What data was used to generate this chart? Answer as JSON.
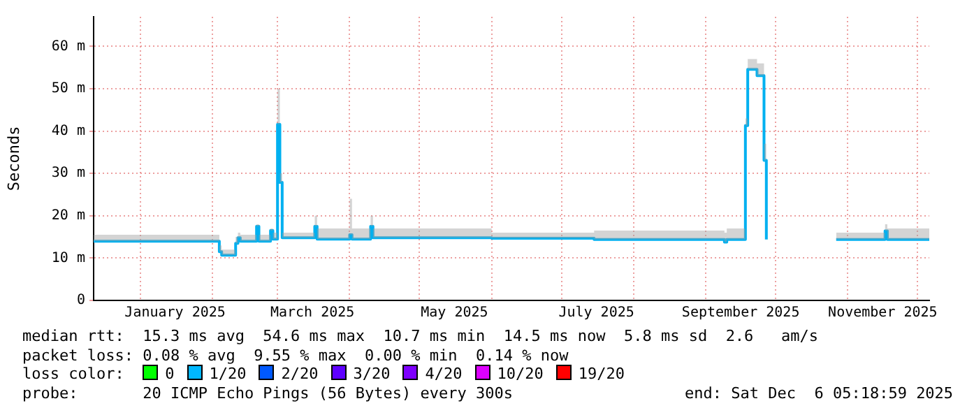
{
  "chart_data": {
    "type": "step",
    "ylabel": "Seconds",
    "legend_title": "loss color:",
    "legend": "bottom",
    "grid": true,
    "marker": "none",
    "x": [
      "2024-12-12",
      "2025-02-04",
      "2025-02-05",
      "2025-02-11",
      "2025-02-12",
      "2025-02-13",
      "2025-02-20",
      "2025-02-21",
      "2025-02-26",
      "2025-02-27",
      "2025-03-01",
      "2025-03-02",
      "2025-03-03",
      "2025-03-17",
      "2025-03-18",
      "2025-04-01",
      "2025-04-02",
      "2025-04-10",
      "2025-04-11",
      "2025-06-01",
      "2025-07-15",
      "2025-09-09",
      "2025-09-10",
      "2025-09-18",
      "2025-09-19",
      "2025-09-23",
      "2025-09-26",
      "2025-09-27",
      "2025-10-22",
      "2025-10-27",
      "2025-11-17",
      "2025-11-18",
      "2025-12-06"
    ],
    "series": [
      {
        "color": "#00b0f0",
        "values": [
          14.0,
          11.5,
          10.7,
          13.5,
          14.8,
          14.0,
          17.5,
          14.0,
          16.5,
          14.5,
          41.6,
          27.9,
          14.8,
          17.5,
          14.5,
          15.5,
          14.5,
          17.5,
          14.8,
          14.7,
          14.4,
          13.8,
          14.4,
          41.3,
          54.6,
          53.1,
          33.1,
          14.4,
          null,
          14.4,
          16.4,
          14.4,
          14.5
        ],
        "lower": [
          14.0,
          11.5,
          10.7,
          13.5,
          14.8,
          14.0,
          17.5,
          14.0,
          16.5,
          14.5,
          41.6,
          27.9,
          14.8,
          17.5,
          14.5,
          15.5,
          14.5,
          17.5,
          14.8,
          14.7,
          14.4,
          13.8,
          14.4,
          41.3,
          54.6,
          53.1,
          33.1,
          14.4,
          null,
          14.4,
          16.4,
          14.4,
          14.5
        ],
        "upper": [
          15.5,
          13,
          12,
          15,
          16,
          15.5,
          18,
          15.5,
          17,
          16,
          50,
          30,
          16,
          20,
          17,
          24,
          17,
          20,
          17,
          16,
          16.5,
          16,
          17,
          43,
          57,
          56,
          37,
          16,
          null,
          16,
          18,
          17,
          17
        ]
      },
      {
        "name": "0",
        "color": "#00ff00",
        "values": [
          null,
          null,
          null,
          null,
          null,
          null,
          null,
          null,
          null,
          null,
          null,
          null,
          null,
          null,
          null,
          null,
          null,
          null,
          null,
          null,
          null,
          null,
          null,
          null,
          null,
          null,
          null,
          null,
          null,
          null,
          null,
          null,
          null
        ]
      },
      {
        "name": "1/20",
        "color": "#00b8ff",
        "values": [
          null,
          null,
          null,
          null,
          null,
          null,
          null,
          null,
          null,
          null,
          null,
          null,
          null,
          null,
          null,
          null,
          null,
          null,
          null,
          null,
          null,
          null,
          null,
          null,
          null,
          null,
          null,
          null,
          null,
          null,
          null,
          null,
          null
        ]
      },
      {
        "name": "2/20",
        "color": "#0059ff",
        "values": [
          null,
          null,
          null,
          null,
          null,
          null,
          null,
          null,
          null,
          null,
          null,
          null,
          null,
          null,
          null,
          null,
          null,
          null,
          null,
          null,
          null,
          null,
          null,
          null,
          null,
          null,
          null,
          null,
          null,
          null,
          null,
          null,
          null
        ]
      },
      {
        "name": "3/20",
        "color": "#5e00ff",
        "values": [
          null,
          null,
          null,
          null,
          null,
          null,
          null,
          null,
          null,
          null,
          null,
          null,
          null,
          null,
          null,
          null,
          null,
          null,
          null,
          null,
          null,
          null,
          null,
          null,
          null,
          null,
          null,
          null,
          null,
          null,
          null,
          null,
          null
        ]
      },
      {
        "name": "4/20",
        "color": "#7e00ff",
        "values": [
          null,
          null,
          null,
          null,
          null,
          null,
          null,
          null,
          null,
          null,
          null,
          null,
          null,
          null,
          null,
          null,
          null,
          null,
          null,
          null,
          null,
          null,
          null,
          null,
          null,
          null,
          null,
          null,
          null,
          null,
          null,
          null,
          null
        ]
      },
      {
        "name": "10/20",
        "color": "#dd00ff",
        "values": [
          null,
          null,
          null,
          null,
          null,
          null,
          null,
          null,
          null,
          null,
          null,
          null,
          null,
          null,
          null,
          null,
          null,
          null,
          null,
          null,
          null,
          null,
          null,
          null,
          null,
          null,
          null,
          null,
          null,
          null,
          null,
          null,
          null
        ]
      },
      {
        "name": "19/20",
        "color": "#ff0000",
        "values": [
          null,
          null,
          null,
          null,
          null,
          null,
          null,
          null,
          null,
          null,
          null,
          null,
          null,
          null,
          null,
          null,
          null,
          null,
          null,
          null,
          null,
          null,
          null,
          null,
          null,
          null,
          null,
          null,
          null,
          null,
          null,
          null,
          null
        ]
      }
    ],
    "xlim": [
      "2024-12-12",
      "2025-12-06"
    ],
    "xticks": [
      {
        "value": "2025-01-01",
        "label": null
      },
      {
        "value": "2025-01-16",
        "label": "January 2025"
      },
      {
        "value": "2025-02-01",
        "label": null
      },
      {
        "value": "2025-03-01",
        "label": null
      },
      {
        "value": "2025-03-16",
        "label": "March 2025"
      },
      {
        "value": "2025-04-01",
        "label": null
      },
      {
        "value": "2025-05-01",
        "label": null
      },
      {
        "value": "2025-05-16",
        "label": "May 2025"
      },
      {
        "value": "2025-06-01",
        "label": null
      },
      {
        "value": "2025-07-01",
        "label": null
      },
      {
        "value": "2025-07-16",
        "label": "July 2025"
      },
      {
        "value": "2025-08-01",
        "label": null
      },
      {
        "value": "2025-09-01",
        "label": null
      },
      {
        "value": "2025-09-16",
        "label": "September 2025"
      },
      {
        "value": "2025-10-01",
        "label": null
      },
      {
        "value": "2025-11-01",
        "label": null
      },
      {
        "value": "2025-11-16",
        "label": "November 2025"
      },
      {
        "value": "2025-12-01",
        "label": null
      }
    ],
    "ylim": [
      0,
      67
    ],
    "yticks": [
      0,
      {
        "value": 10,
        "label": "10 m"
      },
      {
        "value": 20,
        "label": "20 m"
      },
      {
        "value": 30,
        "label": "30 m"
      },
      {
        "value": 40,
        "label": "40 m"
      },
      {
        "value": 50,
        "label": "50 m"
      },
      {
        "value": 60,
        "label": "60 m"
      }
    ],
    "annotations": [
      "median rtt:  15.3 ms avg  54.6 ms max  10.7 ms min  14.5 ms now  5.8 ms sd  2.6   am/s",
      "packet loss: 0.08 % avg  9.55 % max  0.00 % min  0.14 % now",
      "probe:       20 ICMP Echo Pings (56 Bytes) every 300s",
      "end: Sat Dec  6 05:18:59 2025"
    ]
  }
}
